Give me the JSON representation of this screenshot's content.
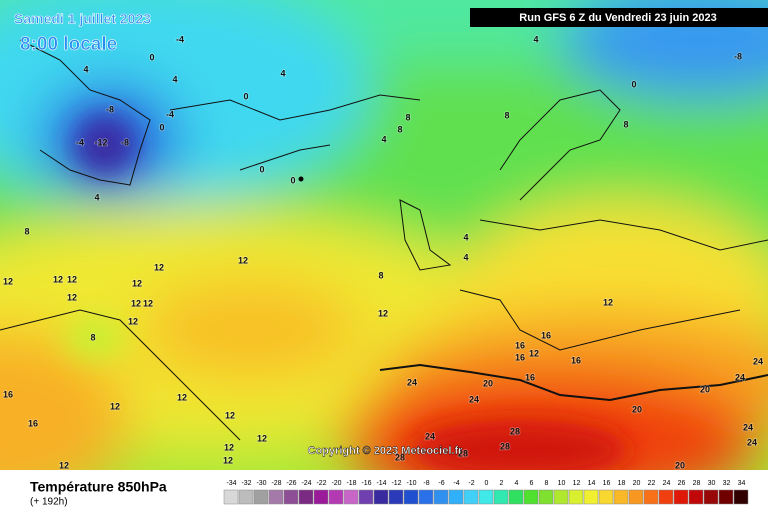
{
  "header": {
    "valid_date": "Samedi 1 juillet 2023",
    "local_time": "8:00 locale",
    "run": "Run GFS 6 Z du Vendredi 23 juin 2023",
    "copyright": "Copyright © 2023 Meteociel.fr"
  },
  "footer": {
    "title": "Température 850hPa",
    "lead_time": "(+ 192h)"
  },
  "contour_labels": [
    -4,
    0,
    4,
    4,
    4,
    0,
    -8,
    -12,
    -8,
    -4,
    -4,
    0,
    0,
    0,
    4,
    4,
    -8,
    0,
    8,
    8,
    8,
    8,
    4,
    4,
    4,
    8,
    8,
    12,
    12,
    12,
    12,
    12,
    12,
    12,
    12,
    12,
    12,
    12,
    12,
    8,
    16,
    16,
    12,
    16,
    16,
    16,
    16,
    16,
    12,
    12,
    12,
    12,
    12,
    12,
    12,
    20,
    20,
    20,
    24,
    24,
    24,
    24,
    24,
    24,
    24,
    28,
    28,
    28,
    28,
    20
  ],
  "scale": {
    "values": [
      -34,
      -32,
      -30,
      -28,
      -26,
      -24,
      -22,
      -20,
      -18,
      -16,
      -14,
      -12,
      -10,
      -8,
      -6,
      -4,
      -2,
      0,
      2,
      4,
      6,
      8,
      10,
      12,
      14,
      16,
      18,
      20,
      22,
      24,
      26,
      28,
      30,
      32,
      34
    ],
    "colors": [
      "#d8d8d8",
      "#bcbcbc",
      "#a0a0a0",
      "#a47aa8",
      "#8e4e96",
      "#7a2a82",
      "#9a1a9a",
      "#b43ab4",
      "#c866c8",
      "#7040b0",
      "#3a2aa0",
      "#2a3ab8",
      "#2050d0",
      "#2a70e8",
      "#3090f0",
      "#30b0f8",
      "#40d0f8",
      "#40e8e8",
      "#30e8b0",
      "#30e060",
      "#50e030",
      "#80e030",
      "#b0e830",
      "#d8f030",
      "#f0f030",
      "#f8d830",
      "#f8b828",
      "#f89820",
      "#f87018",
      "#f04010",
      "#e01808",
      "#c00808",
      "#980808",
      "#700000",
      "#300000"
    ]
  }
}
